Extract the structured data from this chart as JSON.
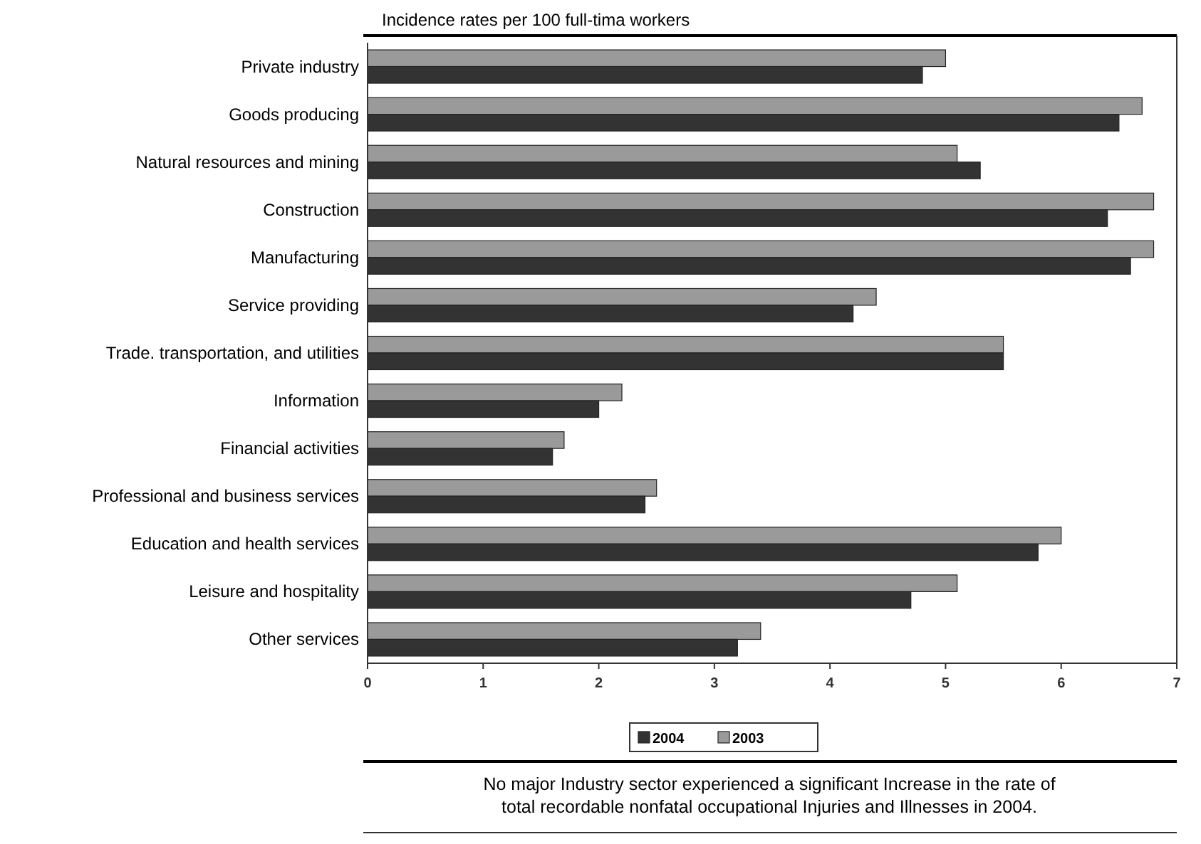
{
  "chart_data": {
    "type": "bar",
    "orientation": "horizontal",
    "title": "Incidence rates per 100 full-tima workers",
    "categories": [
      "Private industry",
      "Goods producing",
      "Natural resources and mining",
      "Construction",
      "Manufacturing",
      "Service providing",
      "Trade. transportation, and utilities",
      "Information",
      "Financial activities",
      "Professional and business services",
      "Education and health services",
      "Leisure and hospitality",
      "Other services"
    ],
    "series": [
      {
        "name": "2003",
        "color": "#9a9a9a",
        "values": [
          5.0,
          6.7,
          5.1,
          6.8,
          6.8,
          4.4,
          5.5,
          2.2,
          1.7,
          2.5,
          6.0,
          5.1,
          3.4
        ]
      },
      {
        "name": "2004",
        "color": "#333333",
        "values": [
          4.8,
          6.5,
          5.3,
          6.4,
          6.6,
          4.2,
          5.5,
          2.0,
          1.6,
          2.4,
          5.8,
          4.7,
          3.2
        ]
      }
    ],
    "xlim": [
      0,
      7
    ],
    "xticks": [
      0,
      1,
      2,
      3,
      4,
      5,
      6,
      7
    ],
    "legend": "bottom",
    "annotations": [
      "No major Industry sector experienced a significant Increase in the rate of total recordable nonfatal occupational Injuries and Illnesses in 2004."
    ]
  }
}
